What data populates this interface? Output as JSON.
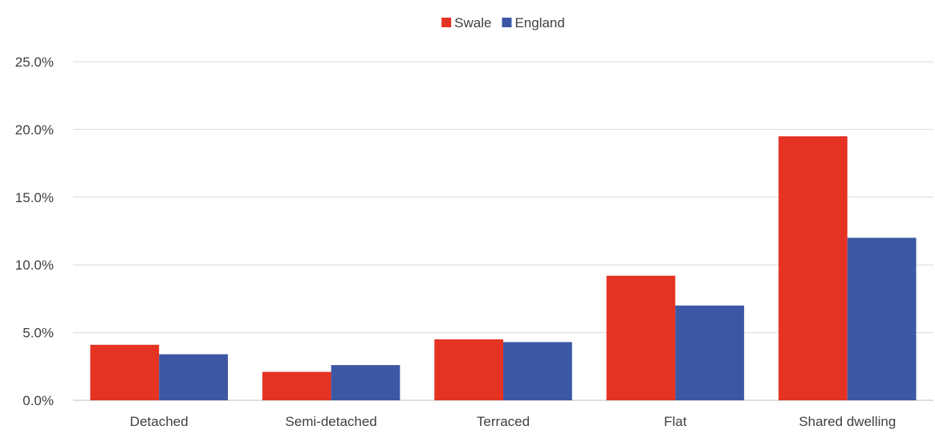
{
  "chart_data": {
    "type": "bar",
    "title": "",
    "xlabel": "",
    "ylabel": "",
    "categories": [
      "Detached",
      "Semi-detached",
      "Terraced",
      "Flat",
      "Shared dwelling"
    ],
    "series": [
      {
        "name": "Swale",
        "color": "#e53323",
        "values": [
          4.1,
          2.1,
          4.5,
          9.2,
          19.5
        ]
      },
      {
        "name": "England",
        "color": "#3c58a5",
        "values": [
          3.4,
          2.6,
          4.3,
          7.0,
          12.0
        ]
      }
    ],
    "ylim": [
      0,
      25
    ],
    "yticks": [
      0,
      5,
      10,
      15,
      20,
      25
    ],
    "ytick_labels": [
      "0.0%",
      "5.0%",
      "10.0%",
      "15.0%",
      "20.0%",
      "25.0%"
    ],
    "grid": true,
    "gridline_color": "#d9d9d9",
    "legend_position": "top-center"
  }
}
